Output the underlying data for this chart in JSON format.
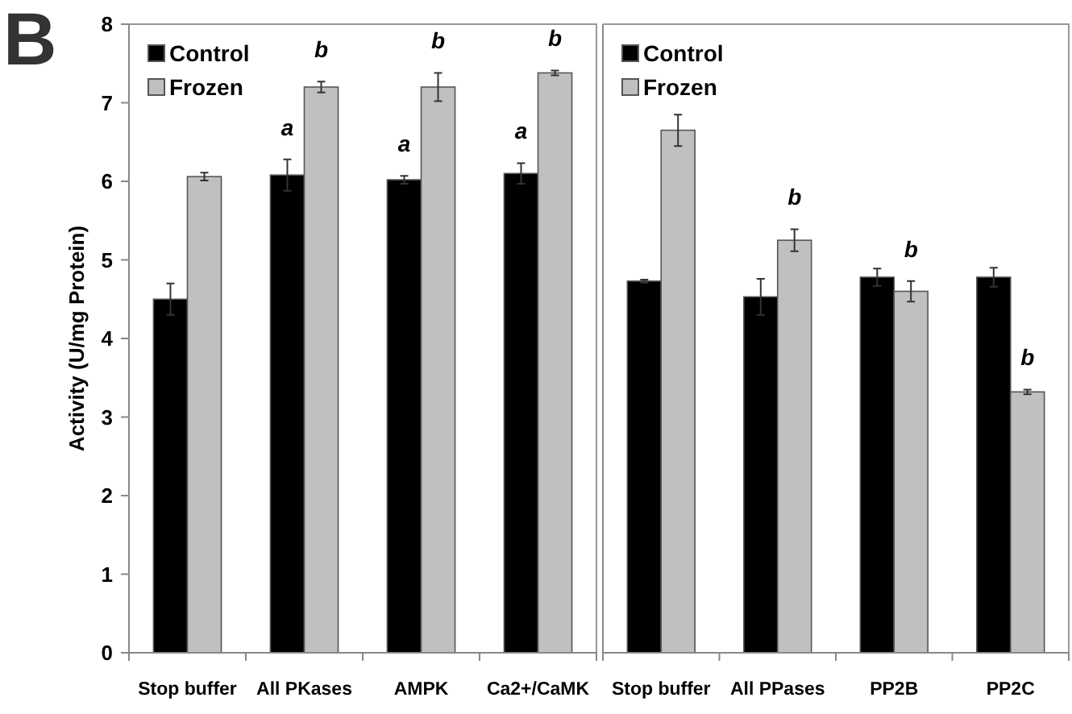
{
  "chart_data": [
    {
      "type": "bar",
      "title": "B",
      "ylabel": "Activity (U/mg Protein)",
      "categories": [
        "Stop buffer",
        "All PKases",
        "AMPK",
        "Ca2+/CaMK"
      ],
      "series": [
        {
          "name": "Control",
          "color": "#000000",
          "values": [
            4.5,
            6.08,
            6.02,
            6.1
          ],
          "errors": [
            0.2,
            0.2,
            0.05,
            0.13
          ]
        },
        {
          "name": "Frozen",
          "color": "#c0c0c0",
          "values": [
            6.06,
            7.2,
            7.2,
            7.38
          ],
          "errors": [
            0.05,
            0.07,
            0.18,
            0.03
          ]
        }
      ],
      "ylim": [
        0,
        8
      ],
      "yticks": [
        0,
        1,
        2,
        3,
        4,
        5,
        6,
        7,
        8
      ],
      "grid": false,
      "legend": "top left",
      "annotations": [
        {
          "text": "a",
          "x": "All PKases",
          "y": 6.08
        },
        {
          "text": "a",
          "x": "AMPK",
          "y": 6.02
        },
        {
          "text": "a",
          "x": "Ca2+/CaMK",
          "y": 6.1
        },
        {
          "text": "b",
          "x": "All PKases",
          "y": 7.2
        },
        {
          "text": "b",
          "x": "AMPK",
          "y": 7.2
        },
        {
          "text": "b",
          "x": "Ca2+/CaMK",
          "y": 7.38
        }
      ]
    },
    {
      "type": "bar",
      "categories": [
        "Stop buffer",
        "All PPases",
        "PP2B",
        "PP2C"
      ],
      "series": [
        {
          "name": "Control",
          "color": "#000000",
          "values": [
            4.73,
            4.53,
            4.78,
            4.78
          ],
          "errors": [
            0.02,
            0.23,
            0.11,
            0.12
          ]
        },
        {
          "name": "Frozen",
          "color": "#c0c0c0",
          "values": [
            6.65,
            5.25,
            4.6,
            3.32
          ],
          "errors": [
            0.2,
            0.14,
            0.13,
            0.03
          ]
        }
      ],
      "ylim": [
        0,
        8
      ],
      "tick_labels": "x",
      "grid": false,
      "legend": "top left",
      "annotations": [
        {
          "text": "b",
          "x": "All PPases",
          "y": 5.25
        },
        {
          "text": "b",
          "x": "PP2B",
          "y": 4.6
        },
        {
          "text": "b",
          "x": "PP2C",
          "y": 3.32
        }
      ]
    }
  ]
}
